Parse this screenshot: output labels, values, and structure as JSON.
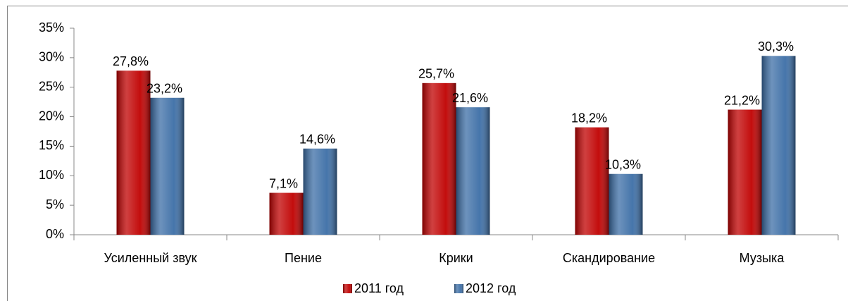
{
  "chart_data": {
    "type": "bar",
    "categories": [
      "Усиленный звук",
      "Пение",
      "Крики",
      "Скандирование",
      "Музыка"
    ],
    "series": [
      {
        "name": "2011 год",
        "color": "#c00000",
        "values": [
          27.8,
          7.1,
          25.7,
          18.2,
          21.2
        ],
        "value_labels": [
          "27,8%",
          "7,1%",
          "25,7%",
          "18,2%",
          "21,2%"
        ]
      },
      {
        "name": "2012 год",
        "color": "#3c6ea6",
        "values": [
          23.2,
          14.6,
          21.6,
          10.3,
          30.3
        ],
        "value_labels": [
          "23,2%",
          "14,6%",
          "21,6%",
          "10,3%",
          "30,3%"
        ]
      }
    ],
    "ylim": [
      0,
      35
    ],
    "yticks": [
      {
        "value": 0,
        "label": "0%"
      },
      {
        "value": 5,
        "label": "5%"
      },
      {
        "value": 10,
        "label": "10%"
      },
      {
        "value": 15,
        "label": "15%"
      },
      {
        "value": 20,
        "label": "20%"
      },
      {
        "value": 25,
        "label": "25%"
      },
      {
        "value": 30,
        "label": "30%"
      },
      {
        "value": 35,
        "label": "35%"
      }
    ],
    "grid": false,
    "legend": "bottom"
  }
}
